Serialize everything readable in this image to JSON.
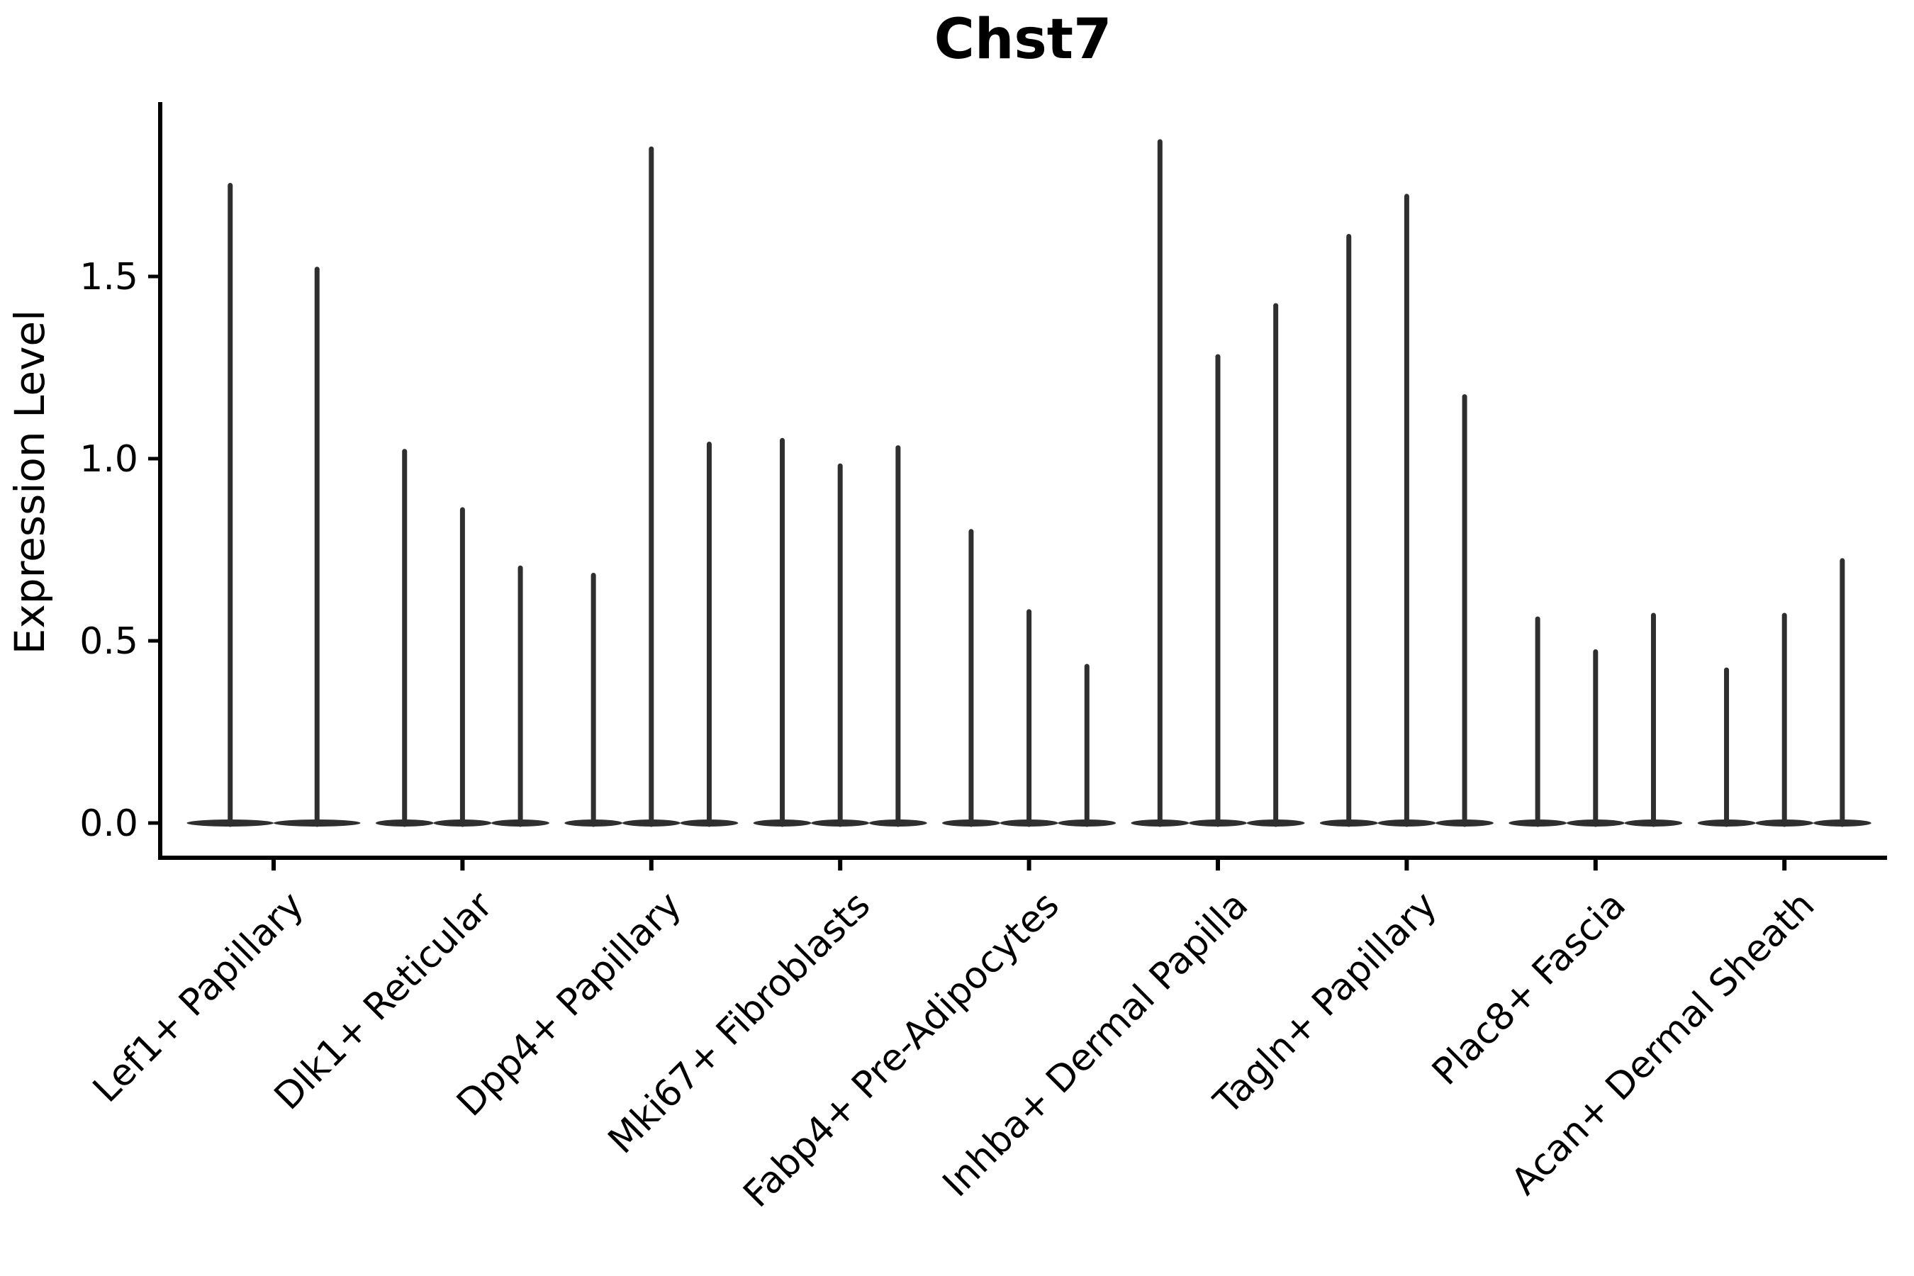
{
  "chart_data": {
    "type": "violin",
    "title": "Chst7",
    "ylabel": "Expression Level",
    "xlabel": "",
    "yticks": [
      "0.0",
      "0.5",
      "1.0",
      "1.5"
    ],
    "ylim": [
      -0.11,
      1.98
    ],
    "grid": false,
    "legend": "none",
    "violin_color": "#2f2f2f",
    "axis_color": "#000000",
    "categories": [
      "Lef1+ Papillary",
      "Dlk1+ Reticular",
      "Dpp4+ Papillary",
      "Mki67+ Fibroblasts",
      "Fabp4+ Pre-Adipocytes",
      "Inhba+ Dermal Papilla",
      "Tagln+ Papillary",
      "Plac8+ Fascia",
      "Acan+ Dermal Sheath"
    ],
    "groups": [
      {
        "category": "Lef1+ Papillary",
        "violin_max_values": [
          1.75,
          1.52
        ]
      },
      {
        "category": "Dlk1+ Reticular",
        "violin_max_values": [
          1.02,
          0.86,
          0.7
        ]
      },
      {
        "category": "Dpp4+ Papillary",
        "violin_max_values": [
          0.68,
          1.85,
          1.04
        ]
      },
      {
        "category": "Mki67+ Fibroblasts",
        "violin_max_values": [
          1.05,
          0.98,
          1.03
        ]
      },
      {
        "category": "Fabp4+ Pre-Adipocytes",
        "violin_max_values": [
          0.8,
          0.58,
          0.43
        ]
      },
      {
        "category": "Inhba+ Dermal Papilla",
        "violin_max_values": [
          1.87,
          1.28,
          1.42
        ]
      },
      {
        "category": "Tagln+ Papillary",
        "violin_max_values": [
          1.61,
          1.72,
          1.17
        ]
      },
      {
        "category": "Plac8+ Fascia",
        "violin_max_values": [
          0.56,
          0.47,
          0.57
        ]
      },
      {
        "category": "Acan+ Dermal Sheath",
        "violin_max_values": [
          0.42,
          0.57,
          0.72
        ]
      }
    ]
  }
}
